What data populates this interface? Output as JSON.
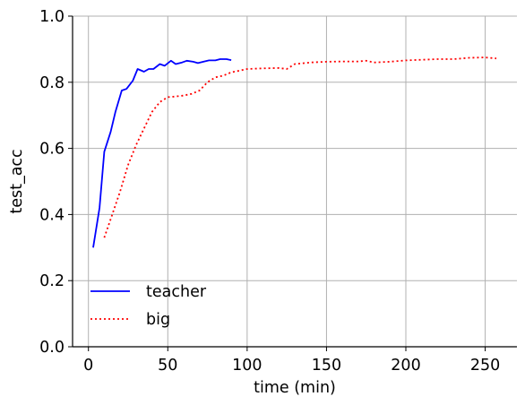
{
  "chart_data": {
    "type": "line",
    "xlabel": "time (min)",
    "ylabel": "test_acc",
    "xlim": [
      -10,
      270
    ],
    "ylim": [
      0.0,
      1.0
    ],
    "x_ticks": [
      0,
      50,
      100,
      150,
      200,
      250
    ],
    "y_ticks": [
      0.0,
      0.2,
      0.4,
      0.6,
      0.8,
      1.0
    ],
    "x_tick_labels": [
      "0",
      "50",
      "100",
      "150",
      "200",
      "250"
    ],
    "y_tick_labels": [
      "0.0",
      "0.2",
      "0.4",
      "0.6",
      "0.8",
      "1.0"
    ],
    "grid": true,
    "legend_position": "lower-left",
    "series": [
      {
        "name": "teacher",
        "color": "#0000ff",
        "style": "solid",
        "x": [
          3,
          7,
          10,
          14,
          17,
          21,
          24,
          28,
          31,
          35,
          38,
          41,
          45,
          48,
          52,
          55,
          59,
          62,
          66,
          69,
          73,
          76,
          80,
          83,
          87,
          90
        ],
        "y": [
          0.3,
          0.42,
          0.59,
          0.65,
          0.71,
          0.775,
          0.78,
          0.805,
          0.84,
          0.832,
          0.84,
          0.84,
          0.855,
          0.85,
          0.865,
          0.855,
          0.86,
          0.865,
          0.862,
          0.858,
          0.863,
          0.866,
          0.866,
          0.87,
          0.87,
          0.867
        ]
      },
      {
        "name": "big",
        "color": "#ff0000",
        "style": "dotted",
        "x": [
          10,
          15,
          20,
          25,
          30,
          35,
          40,
          45,
          50,
          55,
          60,
          65,
          70,
          75,
          80,
          85,
          90,
          95,
          100,
          110,
          120,
          125,
          130,
          140,
          150,
          160,
          170,
          175,
          180,
          190,
          200,
          210,
          220,
          230,
          240,
          250,
          257
        ],
        "y": [
          0.33,
          0.4,
          0.47,
          0.55,
          0.61,
          0.66,
          0.71,
          0.74,
          0.755,
          0.757,
          0.76,
          0.765,
          0.775,
          0.8,
          0.815,
          0.82,
          0.83,
          0.835,
          0.84,
          0.842,
          0.843,
          0.84,
          0.855,
          0.86,
          0.862,
          0.863,
          0.863,
          0.865,
          0.86,
          0.862,
          0.866,
          0.868,
          0.87,
          0.87,
          0.874,
          0.875,
          0.872
        ]
      }
    ]
  }
}
